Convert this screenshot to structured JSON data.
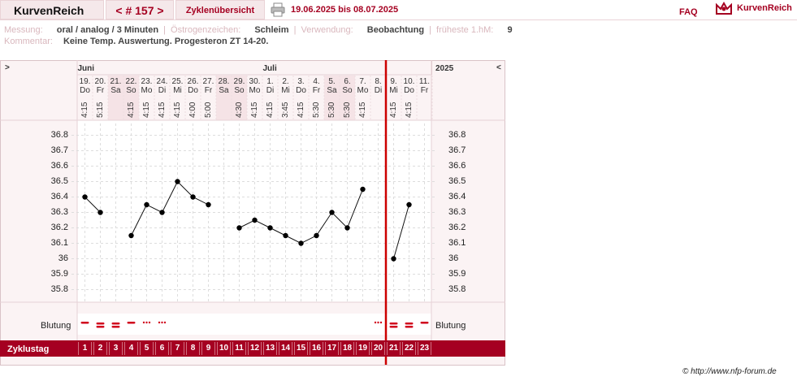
{
  "header": {
    "brand": "KurvenReich",
    "nav": "< # 157 >",
    "overview": "Zyklenübersicht",
    "date_range": "19.06.2025 bis 08.07.2025",
    "faq": "FAQ",
    "logo": "KurvenReich"
  },
  "info": {
    "measurement_label": "Messung:",
    "measurement_value": "oral / analog / 3 Minuten",
    "estrogen_label": "Östrogenzeichen:",
    "estrogen_value": "Schleim",
    "usage_label": "Verwendung:",
    "usage_value": "Beobachtung",
    "earliest_label": "früheste 1.hM:",
    "earliest_value": "9",
    "comment_label": "Kommentar:",
    "comment_value": "Keine Temp. Auswertung. Progesteron ZT 14-20."
  },
  "chart_data": {
    "type": "line",
    "year": "2025",
    "nav_left": ">",
    "nav_right": "<",
    "months": [
      {
        "label": "Juni",
        "day_index": 0
      },
      {
        "label": "Juli",
        "day_index": 12
      }
    ],
    "days": [
      {
        "date": "19.",
        "dow": "Do",
        "time": "4:15",
        "cycle_day": "1",
        "temp": 36.4,
        "bleeding": "dash"
      },
      {
        "date": "20.",
        "dow": "Fr",
        "time": "5:15",
        "cycle_day": "2",
        "temp": 36.3,
        "bleeding": "double"
      },
      {
        "date": "21.",
        "dow": "Sa",
        "time": "",
        "cycle_day": "3",
        "temp": null,
        "bleeding": "double"
      },
      {
        "date": "22.",
        "dow": "So",
        "time": "4:15",
        "cycle_day": "4",
        "temp": 36.15,
        "bleeding": "dash"
      },
      {
        "date": "23.",
        "dow": "Mo",
        "time": "4:15",
        "cycle_day": "5",
        "temp": 36.35,
        "bleeding": "dots"
      },
      {
        "date": "24.",
        "dow": "Di",
        "time": "4:15",
        "cycle_day": "6",
        "temp": 36.3,
        "bleeding": "dots"
      },
      {
        "date": "25.",
        "dow": "Mi",
        "time": "4:15",
        "cycle_day": "7",
        "temp": 36.5,
        "bleeding": ""
      },
      {
        "date": "26.",
        "dow": "Do",
        "time": "4:00",
        "cycle_day": "8",
        "temp": 36.4,
        "bleeding": ""
      },
      {
        "date": "27.",
        "dow": "Fr",
        "time": "5:00",
        "cycle_day": "9",
        "temp": 36.35,
        "bleeding": ""
      },
      {
        "date": "28.",
        "dow": "Sa",
        "time": "",
        "cycle_day": "10",
        "temp": null,
        "bleeding": ""
      },
      {
        "date": "29.",
        "dow": "So",
        "time": "4:30",
        "cycle_day": "11",
        "temp": 36.2,
        "bleeding": ""
      },
      {
        "date": "30.",
        "dow": "Mo",
        "time": "4:15",
        "cycle_day": "12",
        "temp": 36.25,
        "bleeding": ""
      },
      {
        "date": "1.",
        "dow": "Di",
        "time": "4:15",
        "cycle_day": "13",
        "temp": 36.2,
        "bleeding": ""
      },
      {
        "date": "2.",
        "dow": "Mi",
        "time": "3:45",
        "cycle_day": "14",
        "temp": 36.15,
        "bleeding": ""
      },
      {
        "date": "3.",
        "dow": "Do",
        "time": "4:15",
        "cycle_day": "15",
        "temp": 36.1,
        "bleeding": ""
      },
      {
        "date": "4.",
        "dow": "Fr",
        "time": "5:30",
        "cycle_day": "16",
        "temp": 36.15,
        "bleeding": ""
      },
      {
        "date": "5.",
        "dow": "Sa",
        "time": "5:30",
        "cycle_day": "17",
        "temp": 36.3,
        "bleeding": ""
      },
      {
        "date": "6.",
        "dow": "So",
        "time": "5:30",
        "cycle_day": "18",
        "temp": 36.2,
        "bleeding": ""
      },
      {
        "date": "7.",
        "dow": "Mo",
        "time": "4:15",
        "cycle_day": "19",
        "temp": 36.45,
        "bleeding": ""
      },
      {
        "date": "8.",
        "dow": "Di",
        "time": "",
        "cycle_day": "20",
        "temp": null,
        "bleeding": "dots"
      },
      {
        "date": "9.",
        "dow": "Mi",
        "time": "4:15",
        "cycle_day": "21",
        "temp": 36.0,
        "bleeding": "double"
      },
      {
        "date": "10.",
        "dow": "Do",
        "time": "4:15",
        "cycle_day": "22",
        "temp": 36.35,
        "bleeding": "double"
      },
      {
        "date": "11.",
        "dow": "Fr",
        "time": "",
        "cycle_day": "23",
        "temp": null,
        "bleeding": "dash"
      }
    ],
    "connected_segments": [
      [
        0,
        1
      ],
      [
        3,
        8
      ],
      [
        10,
        18
      ],
      [
        20,
        21
      ]
    ],
    "cycle_start_marker_index": 20,
    "y_ticks": [
      36.8,
      36.7,
      36.6,
      36.5,
      36.4,
      36.3,
      36.2,
      36.1,
      36.0,
      35.9,
      35.8
    ],
    "y_tick_labels": [
      "36.8",
      "36.7",
      "36.6",
      "36.5",
      "36.4",
      "36.3",
      "36.2",
      "36.1",
      "36",
      "35.9",
      "35.8"
    ],
    "ylim": [
      35.7,
      36.85
    ],
    "bleeding_label": "Blutung",
    "cycle_day_label": "Zyklustag",
    "colors": {
      "accent": "#a50021",
      "bleeding": "#d0001c",
      "marker": "#cc0000"
    }
  },
  "footer": {
    "credit": "© http://www.nfp-forum.de"
  }
}
